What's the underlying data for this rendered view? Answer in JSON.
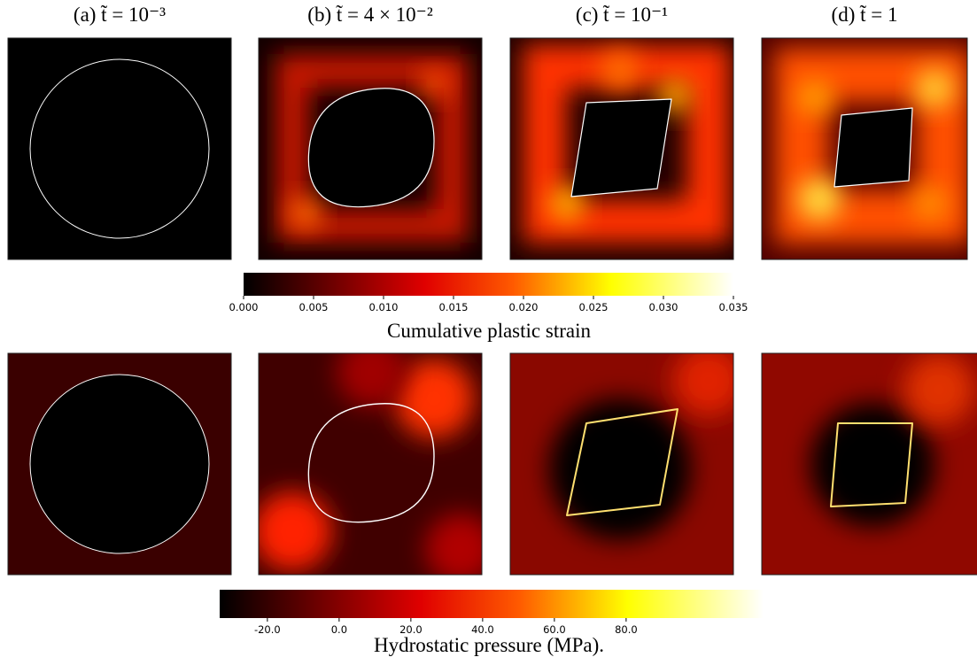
{
  "panels": [
    {
      "title": "(a) t̃ = 10⁻³"
    },
    {
      "title": "(b) t̃ = 4 × 10⁻²"
    },
    {
      "title": "(c) t̃ = 10⁻¹"
    },
    {
      "title": "(d) t̃ = 1"
    }
  ],
  "colorbars": [
    {
      "label": "Cumulative plastic strain",
      "lim": [
        0,
        0.035
      ],
      "ticks": [
        {
          "value": 0,
          "label": "0.000"
        },
        {
          "value": 0.005,
          "label": "0.005"
        },
        {
          "value": 0.01,
          "label": "0.010"
        },
        {
          "value": 0.015,
          "label": "0.015"
        },
        {
          "value": 0.02,
          "label": "0.020"
        },
        {
          "value": 0.025,
          "label": "0.025"
        },
        {
          "value": 0.03,
          "label": "0.030"
        },
        {
          "value": 0.035,
          "label": "0.035"
        }
      ]
    },
    {
      "label": "Hydrostatic pressure (MPa).",
      "lim": [
        -33.3,
        118.3
      ],
      "ticks": [
        {
          "value": -20,
          "label": "-20.0"
        },
        {
          "value": 0,
          "label": "0.0"
        },
        {
          "value": 20,
          "label": "20.0"
        },
        {
          "value": 40,
          "label": "40.0"
        },
        {
          "value": 60,
          "label": "60.0"
        },
        {
          "value": 80,
          "label": "80.0"
        }
      ]
    }
  ]
}
